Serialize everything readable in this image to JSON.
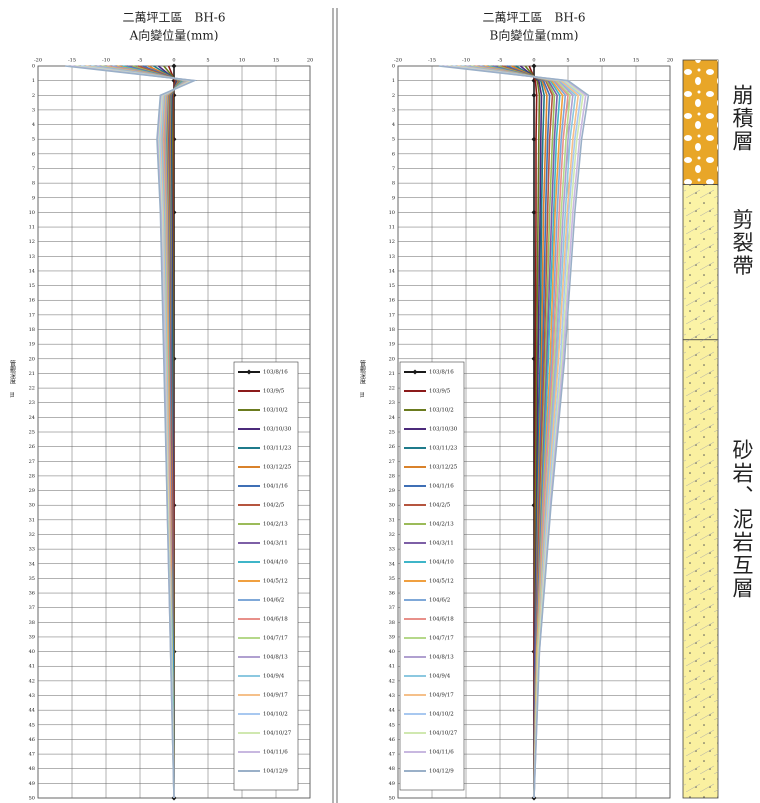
{
  "chart_data": [
    {
      "type": "line",
      "title": "二萬坪工區　BH-6",
      "subtitle": "A向變位量(mm)",
      "ylabel": "管觀深度",
      "yunit": "m",
      "xlim": [
        -20,
        20
      ],
      "xticks": [
        -20,
        -15,
        -10,
        -5,
        0,
        5,
        10,
        15,
        20
      ],
      "ylim": [
        0,
        50
      ],
      "yticks": [
        0,
        1,
        2,
        3,
        4,
        5,
        6,
        7,
        8,
        9,
        10,
        11,
        12,
        13,
        14,
        15,
        16,
        17,
        18,
        19,
        20,
        21,
        22,
        23,
        24,
        25,
        26,
        27,
        28,
        29,
        30,
        31,
        32,
        33,
        34,
        35,
        36,
        37,
        38,
        39,
        40,
        41,
        42,
        43,
        44,
        45,
        46,
        47,
        48,
        49,
        50
      ],
      "grid": true,
      "legend": "lower right",
      "depth": [
        0,
        1,
        2,
        5,
        10,
        20,
        30,
        40,
        50
      ],
      "series": [
        {
          "name": "103/8/16",
          "color": "#1a1a1a",
          "marker": "diamond",
          "values": [
            0,
            0,
            0,
            0,
            0,
            0,
            0,
            0,
            0
          ]
        },
        {
          "name": "103/9/5",
          "color": "#8b1a1a",
          "values": [
            -0.8,
            0.1,
            -0.1,
            -0.1,
            -0.1,
            -0.1,
            0,
            0,
            0
          ]
        },
        {
          "name": "103/10/2",
          "color": "#6b7b1f",
          "values": [
            -1.5,
            0.3,
            -0.2,
            -0.2,
            -0.2,
            -0.1,
            -0.1,
            0,
            0
          ]
        },
        {
          "name": "103/10/30",
          "color": "#4b2a7b",
          "values": [
            -2.3,
            0.4,
            -0.3,
            -0.4,
            -0.3,
            -0.2,
            -0.1,
            -0.1,
            0
          ]
        },
        {
          "name": "103/11/23",
          "color": "#1f7b8b",
          "values": [
            -3,
            0.6,
            -0.4,
            -0.5,
            -0.4,
            -0.3,
            -0.2,
            -0.1,
            0
          ]
        },
        {
          "name": "103/12/25",
          "color": "#d9822b",
          "values": [
            -3.8,
            0.7,
            -0.5,
            -0.6,
            -0.5,
            -0.4,
            -0.2,
            -0.1,
            0
          ]
        },
        {
          "name": "104/1/16",
          "color": "#3f6fb5",
          "values": [
            -4.6,
            0.9,
            -0.6,
            -0.7,
            -0.6,
            -0.4,
            -0.3,
            -0.1,
            0
          ]
        },
        {
          "name": "104/2/5",
          "color": "#b5553f",
          "values": [
            -5.3,
            1,
            -0.7,
            -0.8,
            -0.7,
            -0.5,
            -0.3,
            -0.2,
            0
          ]
        },
        {
          "name": "104/2/13",
          "color": "#9bbb59",
          "values": [
            -6.1,
            1.1,
            -0.8,
            -1,
            -0.8,
            -0.6,
            -0.4,
            -0.2,
            0
          ]
        },
        {
          "name": "104/3/11",
          "color": "#7d5fa6",
          "values": [
            -6.9,
            1.3,
            -0.9,
            -1.1,
            -0.9,
            -0.6,
            -0.4,
            -0.2,
            0
          ]
        },
        {
          "name": "104/4/10",
          "color": "#3fb5c8",
          "values": [
            -7.6,
            1.4,
            -1,
            -1.2,
            -1,
            -0.7,
            -0.5,
            -0.2,
            0
          ]
        },
        {
          "name": "104/5/12",
          "color": "#f0a040",
          "values": [
            -8.4,
            1.6,
            -1,
            -1.3,
            -1,
            -0.8,
            -0.5,
            -0.3,
            0
          ]
        },
        {
          "name": "104/6/2",
          "color": "#7fa8d8",
          "values": [
            -9.1,
            1.7,
            -1.1,
            -1.4,
            -1.1,
            -0.9,
            -0.6,
            -0.3,
            0
          ]
        },
        {
          "name": "104/6/18",
          "color": "#e8908a",
          "values": [
            -9.9,
            1.9,
            -1.2,
            -1.5,
            -1.2,
            -0.9,
            -0.6,
            -0.3,
            0
          ]
        },
        {
          "name": "104/7/17",
          "color": "#b5d88a",
          "values": [
            -10.7,
            2,
            -1.3,
            -1.7,
            -1.3,
            -1,
            -0.7,
            -0.3,
            0
          ]
        },
        {
          "name": "104/8/13",
          "color": "#b0a0d0",
          "values": [
            -11.4,
            2.1,
            -1.4,
            -1.8,
            -1.4,
            -1.1,
            -0.7,
            -0.4,
            0
          ]
        },
        {
          "name": "104/9/4",
          "color": "#8cc8e0",
          "values": [
            -12.2,
            2.3,
            -1.5,
            -1.9,
            -1.5,
            -1.1,
            -0.8,
            -0.4,
            0
          ]
        },
        {
          "name": "104/9/17",
          "color": "#f5c08a",
          "values": [
            -13,
            2.4,
            -1.6,
            -2,
            -1.6,
            -1.2,
            -0.8,
            -0.4,
            0
          ]
        },
        {
          "name": "104/10/2",
          "color": "#a8c8f0",
          "values": [
            -13.7,
            2.6,
            -1.7,
            -2.1,
            -1.7,
            -1.3,
            -0.9,
            -0.4,
            0
          ]
        },
        {
          "name": "104/10/27",
          "color": "#d0e8b0",
          "values": [
            -14.5,
            2.7,
            -1.8,
            -2.3,
            -1.8,
            -1.4,
            -0.9,
            -0.5,
            0
          ]
        },
        {
          "name": "104/11/6",
          "color": "#c8b8e0",
          "values": [
            -15.2,
            2.9,
            -1.9,
            -2.4,
            -1.9,
            -1.4,
            -1,
            -0.5,
            0
          ]
        },
        {
          "name": "104/12/9",
          "color": "#9ab0c8",
          "values": [
            -16,
            3,
            -2,
            -2.5,
            -2,
            -1.5,
            -1,
            -0.5,
            0
          ]
        }
      ]
    },
    {
      "type": "line",
      "title": "二萬坪工區　BH-6",
      "subtitle": "B向變位量(mm)",
      "ylabel": "管觀深度",
      "yunit": "m",
      "xlim": [
        -20,
        20
      ],
      "xticks": [
        -20,
        -15,
        -10,
        -5,
        0,
        5,
        10,
        15,
        20
      ],
      "ylim": [
        0,
        50
      ],
      "yticks": [
        0,
        1,
        2,
        3,
        4,
        5,
        6,
        7,
        8,
        9,
        10,
        11,
        12,
        13,
        14,
        15,
        16,
        17,
        18,
        19,
        20,
        21,
        22,
        23,
        24,
        25,
        26,
        27,
        28,
        29,
        30,
        31,
        32,
        33,
        34,
        35,
        36,
        37,
        38,
        39,
        40,
        41,
        42,
        43,
        44,
        45,
        46,
        47,
        48,
        49,
        50
      ],
      "grid": true,
      "legend": "lower left",
      "depth": [
        0,
        1,
        2,
        5,
        10,
        20,
        30,
        40,
        50
      ],
      "series": [
        {
          "name": "103/8/16",
          "color": "#1a1a1a",
          "marker": "diamond",
          "values": [
            0,
            0,
            0,
            0,
            0,
            0,
            0,
            0,
            0
          ]
        },
        {
          "name": "103/9/5",
          "color": "#8b1a1a",
          "values": [
            -0.7,
            0.2,
            0.4,
            0.3,
            0.3,
            0.2,
            0.1,
            0,
            0
          ]
        },
        {
          "name": "103/10/2",
          "color": "#6b7b1f",
          "values": [
            -1.3,
            0.5,
            0.8,
            0.7,
            0.6,
            0.4,
            0.2,
            0.1,
            0
          ]
        },
        {
          "name": "103/10/30",
          "color": "#4b2a7b",
          "values": [
            -2,
            0.7,
            1.1,
            1,
            0.9,
            0.6,
            0.4,
            0.1,
            0
          ]
        },
        {
          "name": "103/11/23",
          "color": "#1f7b8b",
          "values": [
            -2.7,
            1,
            1.5,
            1.3,
            1.1,
            0.9,
            0.5,
            0.2,
            0
          ]
        },
        {
          "name": "103/12/25",
          "color": "#d9822b",
          "values": [
            -3.3,
            1.2,
            1.9,
            1.7,
            1.4,
            1.1,
            0.6,
            0.2,
            0
          ]
        },
        {
          "name": "104/1/16",
          "color": "#3f6fb5",
          "values": [
            -4,
            1.4,
            2.3,
            2,
            1.7,
            1.3,
            0.7,
            0.2,
            0
          ]
        },
        {
          "name": "104/2/5",
          "color": "#b5553f",
          "values": [
            -4.7,
            1.7,
            2.7,
            2.3,
            2,
            1.5,
            0.8,
            0.3,
            0
          ]
        },
        {
          "name": "104/2/13",
          "color": "#9bbb59",
          "values": [
            -5.3,
            1.9,
            3,
            2.7,
            2.3,
            1.7,
            1,
            0.3,
            0
          ]
        },
        {
          "name": "104/3/11",
          "color": "#7d5fa6",
          "values": [
            -6,
            2.1,
            3.4,
            3,
            2.6,
            1.9,
            1.1,
            0.3,
            0
          ]
        },
        {
          "name": "104/4/10",
          "color": "#3fb5c8",
          "values": [
            -6.7,
            2.4,
            3.8,
            3.3,
            2.9,
            2.1,
            1.2,
            0.4,
            0
          ]
        },
        {
          "name": "104/5/12",
          "color": "#f0a040",
          "values": [
            -7.3,
            2.6,
            4.2,
            3.7,
            3.1,
            2.4,
            1.3,
            0.4,
            0
          ]
        },
        {
          "name": "104/6/2",
          "color": "#7fa8d8",
          "values": [
            -8,
            2.9,
            4.6,
            4,
            3.4,
            2.6,
            1.4,
            0.5,
            0
          ]
        },
        {
          "name": "104/6/18",
          "color": "#e8908a",
          "values": [
            -8.7,
            3.1,
            5,
            4.3,
            3.7,
            2.8,
            1.5,
            0.5,
            0
          ]
        },
        {
          "name": "104/7/17",
          "color": "#b5d88a",
          "values": [
            -9.3,
            3.3,
            5.3,
            4.7,
            4,
            3,
            1.7,
            0.5,
            0
          ]
        },
        {
          "name": "104/8/13",
          "color": "#b0a0d0",
          "values": [
            -10,
            3.6,
            5.7,
            5,
            4.3,
            3.2,
            1.8,
            0.6,
            0
          ]
        },
        {
          "name": "104/9/4",
          "color": "#8cc8e0",
          "values": [
            -10.7,
            3.8,
            6.1,
            5.3,
            4.6,
            3.4,
            1.9,
            0.6,
            0
          ]
        },
        {
          "name": "104/9/17",
          "color": "#f5c08a",
          "values": [
            -11.3,
            4,
            6.5,
            5.7,
            4.9,
            3.6,
            2,
            0.6,
            0
          ]
        },
        {
          "name": "104/10/2",
          "color": "#a8c8f0",
          "values": [
            -12,
            4.3,
            6.9,
            6,
            5.1,
            3.9,
            2.1,
            0.7,
            0
          ]
        },
        {
          "name": "104/10/27",
          "color": "#d0e8b0",
          "values": [
            -12.7,
            4.5,
            7.2,
            6.3,
            5.4,
            4.1,
            2.3,
            0.7,
            0
          ]
        },
        {
          "name": "104/11/6",
          "color": "#c8b8e0",
          "values": [
            -13.3,
            4.8,
            7.6,
            6.7,
            5.7,
            4.3,
            2.4,
            0.8,
            0
          ]
        },
        {
          "name": "104/12/9",
          "color": "#9ab0c8",
          "values": [
            -14,
            5,
            8,
            7,
            6,
            4.5,
            2.5,
            0.8,
            0
          ]
        }
      ]
    }
  ],
  "geology_column": {
    "layers": [
      {
        "label": "崩積層",
        "from": 0,
        "to": 8.1,
        "color": "#e8a628"
      },
      {
        "label": "剪裂帶",
        "from": 8.1,
        "to": 18.7,
        "color": "#fbf3a6"
      },
      {
        "label": "砂岩、泥岩互層",
        "from": 18.7,
        "to": 50,
        "color": "#faf0a0"
      }
    ]
  }
}
